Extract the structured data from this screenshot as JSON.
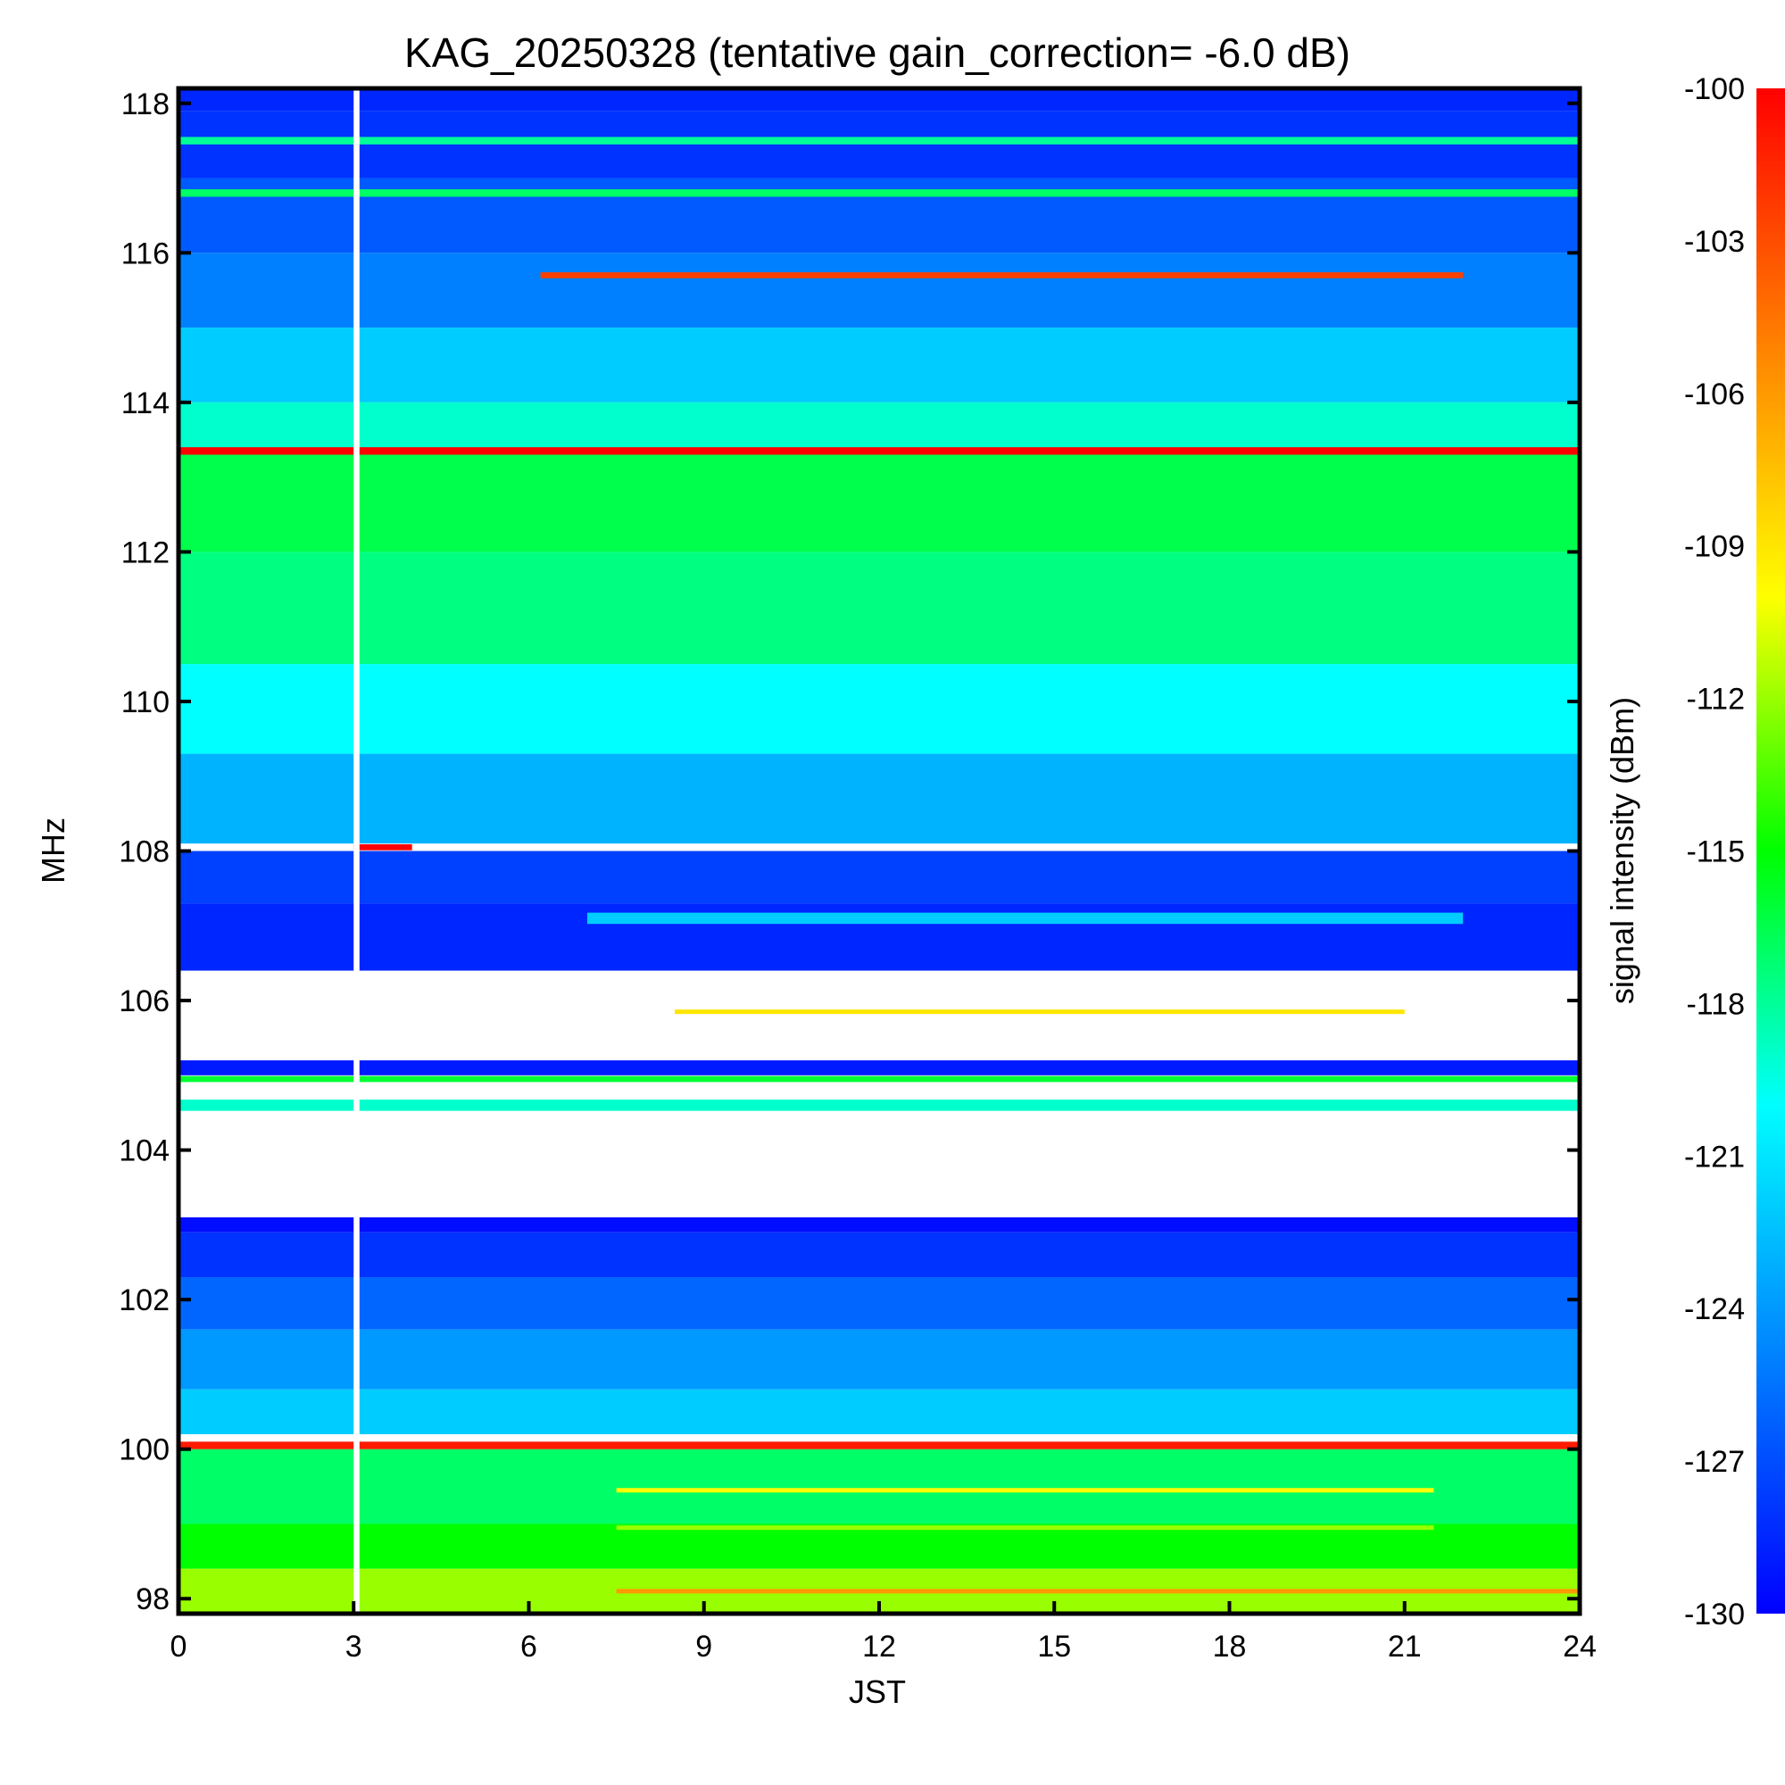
{
  "chart_data": {
    "type": "heatmap",
    "title": "KAG_20250328 (tentative gain_correction= -6.0 dB)",
    "xlabel": "JST",
    "ylabel": "MHz",
    "xlim": [
      0,
      24
    ],
    "ylim": [
      97.8,
      118.2
    ],
    "xticks": [
      "0",
      "3",
      "6",
      "9",
      "12",
      "15",
      "18",
      "21",
      "24"
    ],
    "yticks": [
      "98",
      "100",
      "102",
      "104",
      "106",
      "108",
      "110",
      "112",
      "114",
      "116",
      "118"
    ],
    "colorbar": {
      "label": "signal intensity (dBm)",
      "range": [
        -130,
        -100
      ],
      "ticks": [
        "-100",
        "-103",
        "-106",
        "-109",
        "-112",
        "-115",
        "-118",
        "-121",
        "-124",
        "-127",
        "-130"
      ],
      "colormap": [
        "#0000ff",
        "#0080ff",
        "#00ffff",
        "#00ff00",
        "#ffff00",
        "#ff8000",
        "#ff0000"
      ]
    },
    "data_gap": {
      "time_start": 3.0,
      "time_end": 3.1
    },
    "background_bands": [
      {
        "freq_from": 117.9,
        "freq_to": 118.2,
        "dbm": -128.5
      },
      {
        "freq_from": 117.0,
        "freq_to": 117.9,
        "dbm": -128.0
      },
      {
        "freq_from": 116.0,
        "freq_to": 117.0,
        "dbm": -126.5
      },
      {
        "freq_from": 115.0,
        "freq_to": 116.0,
        "dbm": -125.0
      },
      {
        "freq_from": 114.0,
        "freq_to": 115.0,
        "dbm": -122.0
      },
      {
        "freq_from": 113.3,
        "freq_to": 114.0,
        "dbm": -119.0
      },
      {
        "freq_from": 112.0,
        "freq_to": 113.3,
        "dbm": -116.5
      },
      {
        "freq_from": 110.5,
        "freq_to": 112.0,
        "dbm": -117.5
      },
      {
        "freq_from": 109.3,
        "freq_to": 110.5,
        "dbm": -120.0
      },
      {
        "freq_from": 108.1,
        "freq_to": 109.3,
        "dbm": -123.0
      },
      {
        "freq_from": 107.3,
        "freq_to": 108.0,
        "dbm": -127.5
      },
      {
        "freq_from": 106.4,
        "freq_to": 107.3,
        "dbm": -128.5
      },
      {
        "freq_from": 105.0,
        "freq_to": 105.2,
        "dbm": -129.0
      },
      {
        "freq_from": 102.9,
        "freq_to": 103.1,
        "dbm": -129.5
      },
      {
        "freq_from": 102.3,
        "freq_to": 102.9,
        "dbm": -128.0
      },
      {
        "freq_from": 101.6,
        "freq_to": 102.3,
        "dbm": -126.0
      },
      {
        "freq_from": 100.8,
        "freq_to": 101.6,
        "dbm": -124.0
      },
      {
        "freq_from": 100.2,
        "freq_to": 100.8,
        "dbm": -122.0
      },
      {
        "freq_from": 99.0,
        "freq_to": 100.0,
        "dbm": -117.0
      },
      {
        "freq_from": 98.4,
        "freq_to": 99.0,
        "dbm": -115.0
      },
      {
        "freq_from": 97.8,
        "freq_to": 98.4,
        "dbm": -112.0
      }
    ],
    "signals": [
      {
        "freq": 117.5,
        "time_start": 0,
        "time_end": 24,
        "dbm": -118.0,
        "width": 0.1
      },
      {
        "freq": 116.8,
        "time_start": 0,
        "time_end": 24,
        "dbm": -117.0,
        "width": 0.1
      },
      {
        "freq": 115.7,
        "time_start": 6.2,
        "time_end": 22.0,
        "dbm": -102.5,
        "width": 0.08
      },
      {
        "freq": 113.35,
        "time_start": 0,
        "time_end": 24,
        "dbm": -100.0,
        "width": 0.1
      },
      {
        "freq": 108.05,
        "time_start": 3.0,
        "time_end": 4.0,
        "dbm": -100.0,
        "width": 0.08
      },
      {
        "freq": 107.1,
        "time_start": 7.0,
        "time_end": 22.0,
        "dbm": -122.0,
        "width": 0.15
      },
      {
        "freq": 105.85,
        "time_start": 8.5,
        "time_end": 21.0,
        "dbm": -109.0,
        "width": 0.06
      },
      {
        "freq": 104.95,
        "time_start": 0,
        "time_end": 24,
        "dbm": -116.0,
        "width": 0.08
      },
      {
        "freq": 104.6,
        "time_start": 0,
        "time_end": 24,
        "dbm": -119.0,
        "width": 0.15
      },
      {
        "freq": 100.05,
        "time_start": 0,
        "time_end": 24,
        "dbm": -101.0,
        "width": 0.1
      },
      {
        "freq": 99.45,
        "time_start": 7.5,
        "time_end": 21.5,
        "dbm": -110.0,
        "width": 0.06
      },
      {
        "freq": 98.95,
        "time_start": 7.5,
        "time_end": 21.5,
        "dbm": -112.0,
        "width": 0.06
      },
      {
        "freq": 98.1,
        "time_start": 7.5,
        "time_end": 24.0,
        "dbm": -106.0,
        "width": 0.06
      }
    ]
  }
}
